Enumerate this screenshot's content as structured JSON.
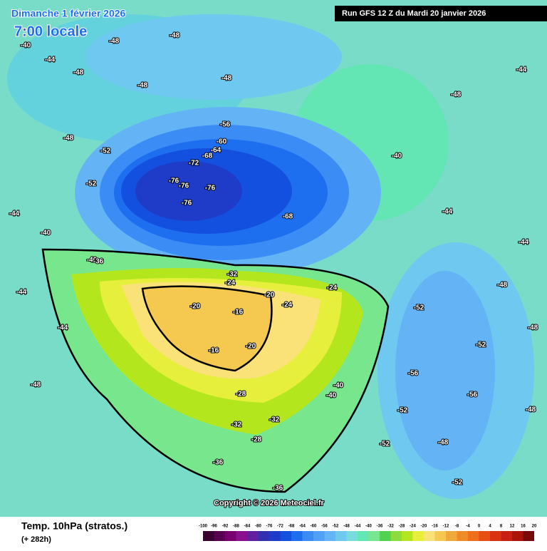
{
  "header": {
    "date": "Dimanche 1 février 2026",
    "time": "7:00 locale",
    "run": "Run GFS 12 Z du Mardi 20 janvier 2026"
  },
  "footer": {
    "variable": "Temp. 10hPa (stratos.)",
    "lead": "(+ 282h)",
    "copyright": "Copyright © 2026 Meteociel.fr"
  },
  "legend": {
    "ticks": [
      -100,
      -96,
      -92,
      -88,
      -84,
      -80,
      -76,
      -72,
      -68,
      -64,
      -60,
      -56,
      -52,
      -48,
      -44,
      -40,
      -36,
      -32,
      -28,
      -24,
      -20,
      -16,
      -12,
      -8,
      -4,
      0,
      4,
      8,
      12,
      16,
      20
    ],
    "colors": [
      "#3a0030",
      "#5a0050",
      "#7a0070",
      "#8a1090",
      "#6020a0",
      "#3030b0",
      "#1e3cc8",
      "#1450e0",
      "#1e6ef0",
      "#3c8cf5",
      "#50a0f5",
      "#64b4f5",
      "#6ec8f0",
      "#78dcdc",
      "#64e6b4",
      "#78e68c",
      "#50d250",
      "#8cdc3c",
      "#b4e61e",
      "#e6f03c",
      "#fae178",
      "#f5c850",
      "#f0aa3c",
      "#f08c28",
      "#f06e1e",
      "#e65014",
      "#dc3214",
      "#c81e14",
      "#aa140a",
      "#780a0a"
    ]
  },
  "map_labels": [
    -40,
    -44,
    -48,
    -48,
    -48,
    -48,
    -48,
    -44,
    -52,
    -56,
    -60,
    -64,
    -68,
    -72,
    -76,
    -76,
    -76,
    -76,
    -68,
    -52,
    -48,
    -40,
    -44,
    -48,
    -44,
    -40,
    -36,
    -32,
    -24,
    -20,
    -20,
    -16,
    -16,
    -20,
    -24,
    -24,
    -28,
    -32,
    -28,
    -32,
    -36,
    -36,
    -40,
    -40,
    -44,
    -48,
    -52,
    -52,
    -56,
    -56,
    -52,
    -52,
    -48,
    -48,
    -44,
    -40,
    -44,
    -48,
    -48,
    -52
  ]
}
